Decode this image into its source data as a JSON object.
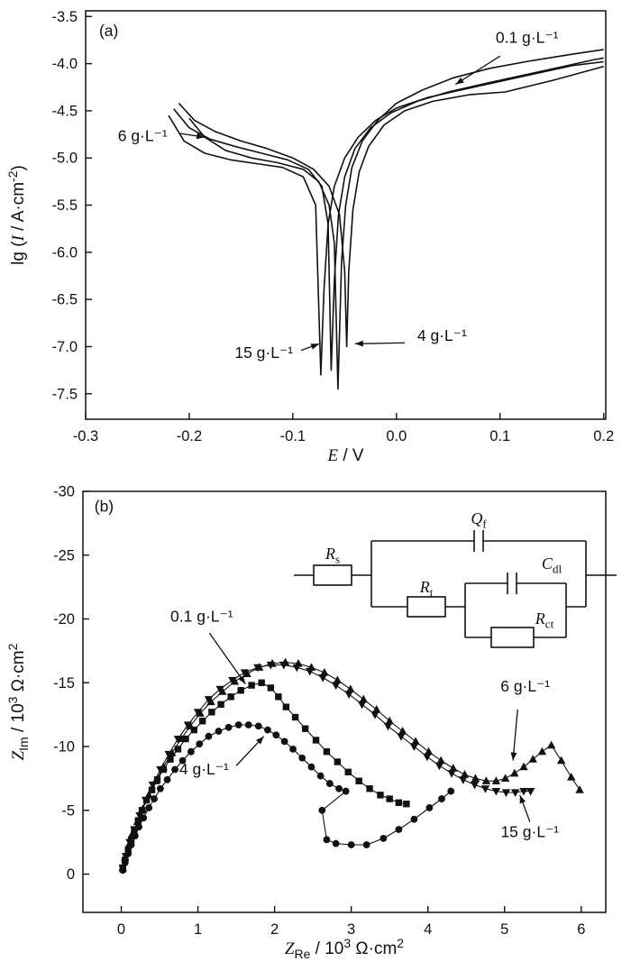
{
  "figure": {
    "background": "#ffffff",
    "ink": "#111111"
  },
  "chart_data": [
    {
      "id": "a",
      "type": "line",
      "panel_label": "(a)",
      "xlabel_segments": [
        {
          "t": "E",
          "i": true
        },
        {
          "t": " / V"
        }
      ],
      "ylabel_segments": [
        {
          "t": "lg ("
        },
        {
          "t": "I",
          "i": true
        },
        {
          "t": " / A·cm"
        },
        {
          "t": "-2",
          "sup": true
        },
        {
          "t": ")"
        }
      ],
      "xlim": [
        -0.3,
        0.202
      ],
      "ylim": [
        -7.77,
        -3.44
      ],
      "xticks": {
        "values": [
          -0.3,
          -0.2,
          -0.1,
          0.0,
          0.1,
          0.2
        ],
        "labels": [
          "-0.3",
          "-0.2",
          "-0.1",
          "0.0",
          "0.1",
          "0.2"
        ]
      },
      "yticks": {
        "values": [
          -3.5,
          -4.0,
          -4.5,
          -5.0,
          -5.5,
          -6.0,
          -6.5,
          -7.0,
          -7.5
        ],
        "labels": [
          "-3.5",
          "-4.0",
          "-4.5",
          "-5.0",
          "-5.5",
          "-6.0",
          "-6.5",
          "-7.0",
          "-7.5"
        ]
      },
      "grid": false,
      "series": [
        {
          "name": "0.1 g·L⁻¹",
          "marker": "none",
          "x": [
            -0.2,
            -0.185,
            -0.165,
            -0.14,
            -0.115,
            -0.09,
            -0.075,
            -0.065,
            -0.06,
            -0.0565,
            -0.053,
            -0.049,
            -0.043,
            -0.033,
            -0.018,
            0.0,
            0.025,
            0.055,
            0.09,
            0.13,
            0.17,
            0.2
          ],
          "y": [
            -4.58,
            -4.78,
            -4.92,
            -5.0,
            -5.05,
            -5.12,
            -5.25,
            -5.5,
            -5.9,
            -7.45,
            -6.1,
            -5.5,
            -5.1,
            -4.82,
            -4.6,
            -4.42,
            -4.28,
            -4.15,
            -4.05,
            -3.97,
            -3.9,
            -3.85
          ]
        },
        {
          "name": "4 g·L⁻¹",
          "marker": "none",
          "x": [
            -0.21,
            -0.195,
            -0.175,
            -0.15,
            -0.125,
            -0.1,
            -0.08,
            -0.065,
            -0.055,
            -0.05,
            -0.048,
            -0.046,
            -0.042,
            -0.036,
            -0.027,
            -0.012,
            0.008,
            0.035,
            0.07,
            0.105,
            0.15,
            0.19,
            0.2
          ],
          "y": [
            -4.42,
            -4.6,
            -4.72,
            -4.82,
            -4.9,
            -5.0,
            -5.12,
            -5.3,
            -5.6,
            -6.2,
            -7.0,
            -6.2,
            -5.55,
            -5.15,
            -4.88,
            -4.65,
            -4.5,
            -4.4,
            -4.33,
            -4.3,
            -4.18,
            -4.06,
            -4.03
          ]
        },
        {
          "name": "6 g·L⁻¹",
          "marker": "none",
          "x": [
            -0.215,
            -0.2,
            -0.18,
            -0.155,
            -0.13,
            -0.105,
            -0.085,
            -0.072,
            -0.066,
            -0.063,
            -0.06,
            -0.056,
            -0.05,
            -0.04,
            -0.025,
            -0.005,
            0.02,
            0.05,
            0.09,
            0.14,
            0.19,
            0.2
          ],
          "y": [
            -4.48,
            -4.68,
            -4.8,
            -4.88,
            -4.95,
            -5.02,
            -5.12,
            -5.3,
            -5.7,
            -7.25,
            -6.3,
            -5.6,
            -5.2,
            -4.9,
            -4.68,
            -4.52,
            -4.4,
            -4.3,
            -4.2,
            -4.08,
            -3.96,
            -3.94
          ]
        },
        {
          "name": "15 g·L⁻¹",
          "marker": "none",
          "x": [
            -0.22,
            -0.205,
            -0.185,
            -0.16,
            -0.135,
            -0.11,
            -0.09,
            -0.078,
            -0.073,
            -0.07,
            -0.066,
            -0.06,
            -0.05,
            -0.037,
            -0.02,
            0.0,
            0.03,
            0.07,
            0.12,
            0.17,
            0.2
          ],
          "y": [
            -4.55,
            -4.82,
            -4.95,
            -5.02,
            -5.06,
            -5.1,
            -5.2,
            -5.5,
            -7.3,
            -6.4,
            -5.7,
            -5.3,
            -5.0,
            -4.78,
            -4.6,
            -4.47,
            -4.36,
            -4.26,
            -4.14,
            -4.02,
            -3.98
          ]
        }
      ],
      "annotations": [
        {
          "text": "(a)",
          "x": -0.287,
          "y": -3.71,
          "anchor": "start"
        },
        {
          "text": "0.1 g·L⁻¹",
          "x": 0.126,
          "y": -3.78,
          "anchor": "middle",
          "arrow": {
            "x1": 0.1,
            "y1": -3.92,
            "x2": 0.057,
            "y2": -4.22
          }
        },
        {
          "text": "6 g·L⁻¹",
          "x": -0.245,
          "y": -4.82,
          "anchor": "middle",
          "arrow": {
            "x1": -0.209,
            "y1": -4.74,
            "x2": -0.185,
            "y2": -4.78
          }
        },
        {
          "text": "15 g·L⁻¹",
          "x": -0.128,
          "y": -7.12,
          "anchor": "middle",
          "arrow": {
            "x1": -0.092,
            "y1": -7.04,
            "x2": -0.0745,
            "y2": -6.97
          }
        },
        {
          "text": "4 g·L⁻¹",
          "x": 0.044,
          "y": -6.94,
          "anchor": "middle",
          "arrow": {
            "x1": 0.008,
            "y1": -6.96,
            "x2": -0.04,
            "y2": -6.97
          }
        }
      ]
    },
    {
      "id": "b",
      "type": "scatter-line",
      "panel_label": "(b)",
      "xlabel_segments": [
        {
          "t": "Z",
          "i": true
        },
        {
          "t": "Re",
          "sub": true
        },
        {
          "t": " / 10"
        },
        {
          "t": "3",
          "sup": true
        },
        {
          "t": " Ω·cm"
        },
        {
          "t": "2",
          "sup": true
        }
      ],
      "ylabel_segments": [
        {
          "t": "Z",
          "i": true
        },
        {
          "t": "Im",
          "sub": true
        },
        {
          "t": " / 10"
        },
        {
          "t": "3",
          "sup": true
        },
        {
          "t": " Ω·cm"
        },
        {
          "t": "2",
          "sup": true
        }
      ],
      "xlim": [
        -0.5,
        6.32
      ],
      "ylim": [
        3,
        -30
      ],
      "xticks": {
        "values": [
          0,
          1,
          2,
          3,
          4,
          5,
          6
        ],
        "labels": [
          "0",
          "1",
          "2",
          "3",
          "4",
          "5",
          "6"
        ]
      },
      "yticks": {
        "values": [
          0,
          -5,
          -10,
          -15,
          -20,
          -25,
          -30
        ],
        "labels": [
          "0",
          "-5",
          "-10",
          "-15",
          "-20",
          "-25",
          "-30"
        ]
      },
      "grid": false,
      "series": [
        {
          "name": "0.1 g·L⁻¹",
          "marker": "square",
          "x": [
            0.02,
            0.05,
            0.09,
            0.13,
            0.17,
            0.22,
            0.27,
            0.33,
            0.4,
            0.47,
            0.55,
            0.64,
            0.74,
            0.84,
            0.95,
            1.06,
            1.18,
            1.3,
            1.43,
            1.56,
            1.7,
            1.83,
            1.95,
            2.05,
            2.15,
            2.27,
            2.4,
            2.54,
            2.68,
            2.82,
            2.96,
            3.1,
            3.24,
            3.38,
            3.5,
            3.62,
            3.72
          ],
          "y": [
            -0.4,
            -1.1,
            -1.9,
            -2.7,
            -3.4,
            -4.2,
            -5.0,
            -5.8,
            -6.6,
            -7.4,
            -8.2,
            -9.0,
            -9.8,
            -10.6,
            -11.3,
            -12.0,
            -12.7,
            -13.3,
            -13.9,
            -14.4,
            -14.8,
            -15.0,
            -14.6,
            -13.9,
            -13.1,
            -12.3,
            -11.4,
            -10.5,
            -9.6,
            -8.8,
            -8.0,
            -7.3,
            -6.7,
            -6.2,
            -5.9,
            -5.6,
            -5.5
          ]
        },
        {
          "name": "4 g·L⁻¹",
          "marker": "circle",
          "x": [
            0.02,
            0.05,
            0.09,
            0.13,
            0.18,
            0.23,
            0.29,
            0.36,
            0.43,
            0.51,
            0.6,
            0.7,
            0.8,
            0.91,
            1.02,
            1.14,
            1.27,
            1.4,
            1.53,
            1.66,
            1.79,
            1.91,
            2.02,
            2.13,
            2.24,
            2.36,
            2.48,
            2.6,
            2.72,
            2.84,
            2.93,
            2.62,
            2.68,
            2.8,
            3.0,
            3.2,
            3.42,
            3.62,
            3.82,
            4.02,
            4.18,
            4.3
          ],
          "y": [
            -0.3,
            -0.9,
            -1.6,
            -2.3,
            -3.0,
            -3.7,
            -4.4,
            -5.2,
            -5.9,
            -6.7,
            -7.4,
            -8.2,
            -8.9,
            -9.6,
            -10.2,
            -10.8,
            -11.2,
            -11.5,
            -11.7,
            -11.7,
            -11.6,
            -11.3,
            -10.9,
            -10.4,
            -9.8,
            -9.1,
            -8.4,
            -7.7,
            -7.1,
            -6.7,
            -6.5,
            -5.0,
            -2.7,
            -2.4,
            -2.3,
            -2.3,
            -2.8,
            -3.5,
            -4.3,
            -5.2,
            -5.9,
            -6.5
          ]
        },
        {
          "name": "6 g·L⁻¹",
          "marker": "triangle-up",
          "x": [
            0.02,
            0.05,
            0.1,
            0.15,
            0.21,
            0.28,
            0.36,
            0.45,
            0.55,
            0.66,
            0.78,
            0.9,
            1.03,
            1.17,
            1.32,
            1.48,
            1.64,
            1.8,
            1.97,
            2.14,
            2.31,
            2.48,
            2.65,
            2.82,
            2.99,
            3.16,
            3.33,
            3.5,
            3.67,
            3.84,
            4.01,
            4.17,
            4.33,
            4.48,
            4.62,
            4.76,
            4.89,
            5.01,
            5.13,
            5.25,
            5.37,
            5.49,
            5.61,
            5.74,
            5.87,
            5.98
          ],
          "y": [
            -0.5,
            -1.3,
            -2.3,
            -3.2,
            -4.1,
            -5.1,
            -6.2,
            -7.3,
            -8.4,
            -9.5,
            -10.6,
            -11.6,
            -12.6,
            -13.5,
            -14.3,
            -15.1,
            -15.7,
            -16.2,
            -16.5,
            -16.6,
            -16.5,
            -16.2,
            -15.8,
            -15.2,
            -14.5,
            -13.7,
            -12.9,
            -12.0,
            -11.2,
            -10.4,
            -9.6,
            -8.9,
            -8.3,
            -7.8,
            -7.5,
            -7.3,
            -7.3,
            -7.5,
            -7.9,
            -8.4,
            -9.0,
            -9.6,
            -10.1,
            -8.9,
            -7.6,
            -6.6
          ]
        },
        {
          "name": "15 g·L⁻¹",
          "marker": "triangle-down",
          "x": [
            0.02,
            0.06,
            0.11,
            0.17,
            0.24,
            0.32,
            0.41,
            0.51,
            0.62,
            0.74,
            0.87,
            1.0,
            1.14,
            1.29,
            1.45,
            1.61,
            1.78,
            1.95,
            2.12,
            2.29,
            2.46,
            2.63,
            2.8,
            2.97,
            3.14,
            3.31,
            3.48,
            3.65,
            3.82,
            3.99,
            4.15,
            4.31,
            4.46,
            4.61,
            4.75,
            4.89,
            5.02,
            5.14,
            5.25,
            5.34
          ],
          "y": [
            -0.5,
            -1.4,
            -2.5,
            -3.5,
            -4.6,
            -5.8,
            -7.0,
            -8.2,
            -9.4,
            -10.6,
            -11.7,
            -12.7,
            -13.7,
            -14.5,
            -15.2,
            -15.8,
            -16.2,
            -16.4,
            -16.4,
            -16.2,
            -15.9,
            -15.4,
            -14.8,
            -14.1,
            -13.3,
            -12.5,
            -11.6,
            -10.8,
            -10.0,
            -9.2,
            -8.5,
            -7.9,
            -7.4,
            -7.0,
            -6.7,
            -6.5,
            -6.4,
            -6.4,
            -6.5,
            -6.5
          ]
        }
      ],
      "annotations": [
        {
          "text": "(b)",
          "x": -0.35,
          "y": -28.4,
          "anchor": "start"
        },
        {
          "text": "0.1 g·L⁻¹",
          "x": 1.05,
          "y": -19.8,
          "anchor": "middle",
          "arrow": {
            "x1": 1.15,
            "y1": -18.9,
            "x2": 1.62,
            "y2": -14.9
          }
        },
        {
          "text": "4 g·L⁻¹",
          "x": 1.08,
          "y": -7.8,
          "anchor": "middle",
          "arrow": {
            "x1": 1.5,
            "y1": -8.5,
            "x2": 1.86,
            "y2": -10.8
          }
        },
        {
          "text": "6 g·L⁻¹",
          "x": 5.27,
          "y": -14.3,
          "anchor": "middle",
          "arrow": {
            "x1": 5.17,
            "y1": -12.9,
            "x2": 5.11,
            "y2": -8.9
          }
        },
        {
          "text": "15 g·L⁻¹",
          "x": 5.33,
          "y": -2.9,
          "anchor": "middle",
          "arrow": {
            "x1": 5.33,
            "y1": -4.1,
            "x2": 5.2,
            "y2": -6.2
          }
        }
      ],
      "circuit": {
        "components": [
          {
            "id": "rs",
            "main": "R",
            "sub": "s"
          },
          {
            "id": "qf",
            "main": "Q",
            "sub": "f"
          },
          {
            "id": "rt",
            "main": "R",
            "sub": "t"
          },
          {
            "id": "cdl",
            "main": "C",
            "sub": "dl"
          },
          {
            "id": "rct",
            "main": "R",
            "sub": "ct"
          }
        ]
      }
    }
  ]
}
